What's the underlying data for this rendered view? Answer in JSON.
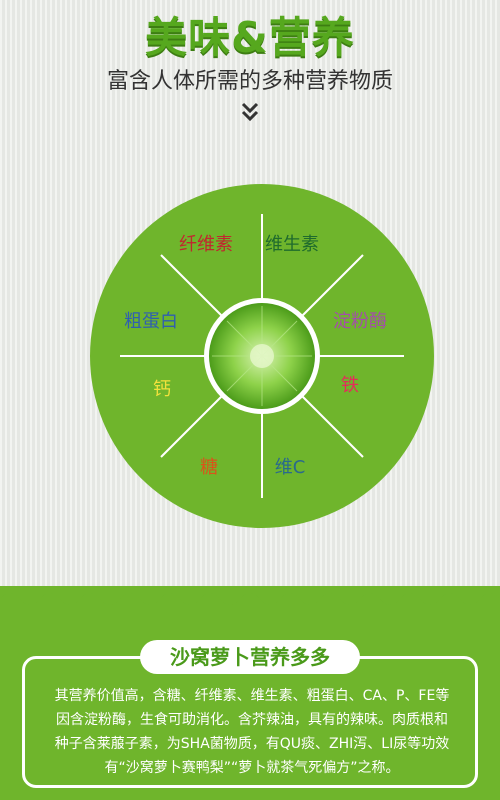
{
  "header": {
    "title": "美味&营养",
    "subtitle": "富含人体所需的多种营养物质"
  },
  "wheel": {
    "segments": [
      {
        "label": "纤维素",
        "color": "#c0282e"
      },
      {
        "label": "维生素",
        "color": "#1f6b2d"
      },
      {
        "label": "淀粉酶",
        "color": "#a34fa8"
      },
      {
        "label": "铁",
        "color": "#e32d5a"
      },
      {
        "label": "维C",
        "color": "#2a6a8c"
      },
      {
        "label": "糖",
        "color": "#d9541a"
      },
      {
        "label": "钙",
        "color": "#f2e13c"
      },
      {
        "label": "粗蛋白",
        "color": "#2f5fb0"
      }
    ]
  },
  "info": {
    "heading": "沙窝萝卜营养多多",
    "lines": [
      "其营养价值高，含糖、纤维素、维生素、粗蛋白、CA、P、FE等",
      "因含淀粉酶，生食可助消化。含芥辣油，具有的辣味。肉质根和",
      "种子含莱菔子素，为SHA菌物质，有QU痰、ZHI泻、LI尿等功效",
      "有“沙窝萝卜赛鸭梨”“萝卜就茶气死偏方”之称。"
    ]
  },
  "colors": {
    "green_main": "#6fb52c",
    "title_green": "#56a81e",
    "background": "#eceeea"
  }
}
